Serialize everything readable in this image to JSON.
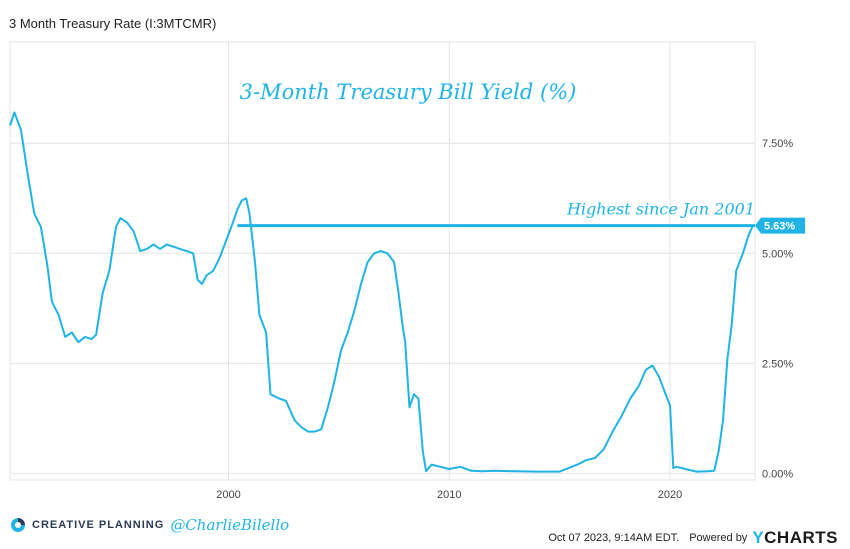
{
  "page": {
    "title": "3 Month Treasury Rate (I:3MTCMR)"
  },
  "chart_data": {
    "type": "line",
    "title": "3-Month Treasury Bill Yield (%)",
    "xlabel": "",
    "ylabel": "",
    "x_ticks": [
      2000,
      2010,
      2020
    ],
    "y_ticks": [
      "0.00%",
      "2.50%",
      "5.00%",
      "7.50%"
    ],
    "y_tick_values": [
      0,
      2.5,
      5,
      7.5
    ],
    "xlim": [
      1990.1,
      2023.85
    ],
    "ylim": [
      -0.15,
      9.8
    ],
    "grid": true,
    "line_color": "#1fb3e6",
    "series": [
      {
        "x": [
          1990.1,
          1990.3,
          1990.6,
          1990.9,
          1991.2,
          1991.5,
          1991.8,
          1992.0,
          1992.3,
          1992.6,
          1992.9,
          1993.2,
          1993.5,
          1993.8,
          1994.0,
          1994.3,
          1994.6,
          1994.9,
          1995.1,
          1995.4,
          1995.7,
          1996.0,
          1996.3,
          1996.6,
          1996.9,
          1997.2,
          1997.5,
          1997.8,
          1998.1,
          1998.4,
          1998.6,
          1998.8,
          1999.0,
          1999.3,
          1999.6,
          1999.9,
          2000.2,
          2000.4,
          2000.6,
          2000.8,
          2000.95,
          2001.2,
          2001.4,
          2001.7,
          2001.9,
          2002.3,
          2002.6,
          2003.0,
          2003.3,
          2003.6,
          2003.9,
          2004.2,
          2004.5,
          2004.8,
          2005.1,
          2005.4,
          2005.7,
          2006.0,
          2006.3,
          2006.6,
          2006.9,
          2007.2,
          2007.5,
          2007.7,
          2007.9,
          2008.0,
          2008.2,
          2008.4,
          2008.6,
          2008.8,
          2008.95,
          2009.2,
          2009.6,
          2010.0,
          2010.5,
          2011.0,
          2011.5,
          2012.0,
          2013.0,
          2014.0,
          2015.0,
          2015.8,
          2016.2,
          2016.6,
          2017.0,
          2017.4,
          2017.8,
          2018.2,
          2018.6,
          2018.9,
          2019.2,
          2019.5,
          2019.8,
          2020.0,
          2020.15,
          2020.3,
          2020.7,
          2021.2,
          2021.7,
          2022.0,
          2022.2,
          2022.4,
          2022.6,
          2022.8,
          2023.0,
          2023.3,
          2023.55,
          2023.75
        ],
        "values": [
          7.9,
          8.2,
          7.8,
          6.8,
          5.9,
          5.6,
          4.7,
          3.9,
          3.6,
          3.1,
          3.2,
          2.98,
          3.1,
          3.05,
          3.15,
          4.1,
          4.6,
          5.6,
          5.8,
          5.7,
          5.5,
          5.05,
          5.1,
          5.2,
          5.1,
          5.2,
          5.15,
          5.1,
          5.05,
          5.0,
          4.4,
          4.3,
          4.5,
          4.6,
          4.9,
          5.3,
          5.7,
          6.0,
          6.2,
          6.25,
          5.9,
          4.8,
          3.6,
          3.2,
          1.8,
          1.7,
          1.65,
          1.2,
          1.05,
          0.95,
          0.95,
          1.0,
          1.5,
          2.1,
          2.8,
          3.2,
          3.7,
          4.3,
          4.8,
          5.0,
          5.05,
          5.0,
          4.8,
          4.1,
          3.3,
          3.0,
          1.5,
          1.8,
          1.7,
          0.5,
          0.05,
          0.2,
          0.15,
          0.1,
          0.15,
          0.06,
          0.05,
          0.06,
          0.05,
          0.04,
          0.04,
          0.2,
          0.3,
          0.35,
          0.55,
          0.95,
          1.3,
          1.7,
          2.0,
          2.35,
          2.45,
          2.2,
          1.8,
          1.55,
          0.12,
          0.15,
          0.1,
          0.04,
          0.05,
          0.06,
          0.5,
          1.2,
          2.6,
          3.4,
          4.6,
          5.0,
          5.4,
          5.63
        ]
      }
    ],
    "annotations": {
      "reference_line_value": 5.63,
      "reference_line_start_x": 2000.4,
      "reference_text": "Highest since Jan 2001",
      "last_value_label": "5.63%"
    }
  },
  "footer": {
    "brand": "CREATIVE PLANNING",
    "handle": "@CharlieBilello",
    "timestamp": "Oct 07 2023, 9:14AM EDT.",
    "powered_by": "Powered by",
    "source_logo_y": "Y",
    "source_logo_rest": "CHARTS"
  },
  "colors": {
    "line": "#1fb3e6",
    "brand": "#2b3a55",
    "grid": "#e4e4e4"
  }
}
